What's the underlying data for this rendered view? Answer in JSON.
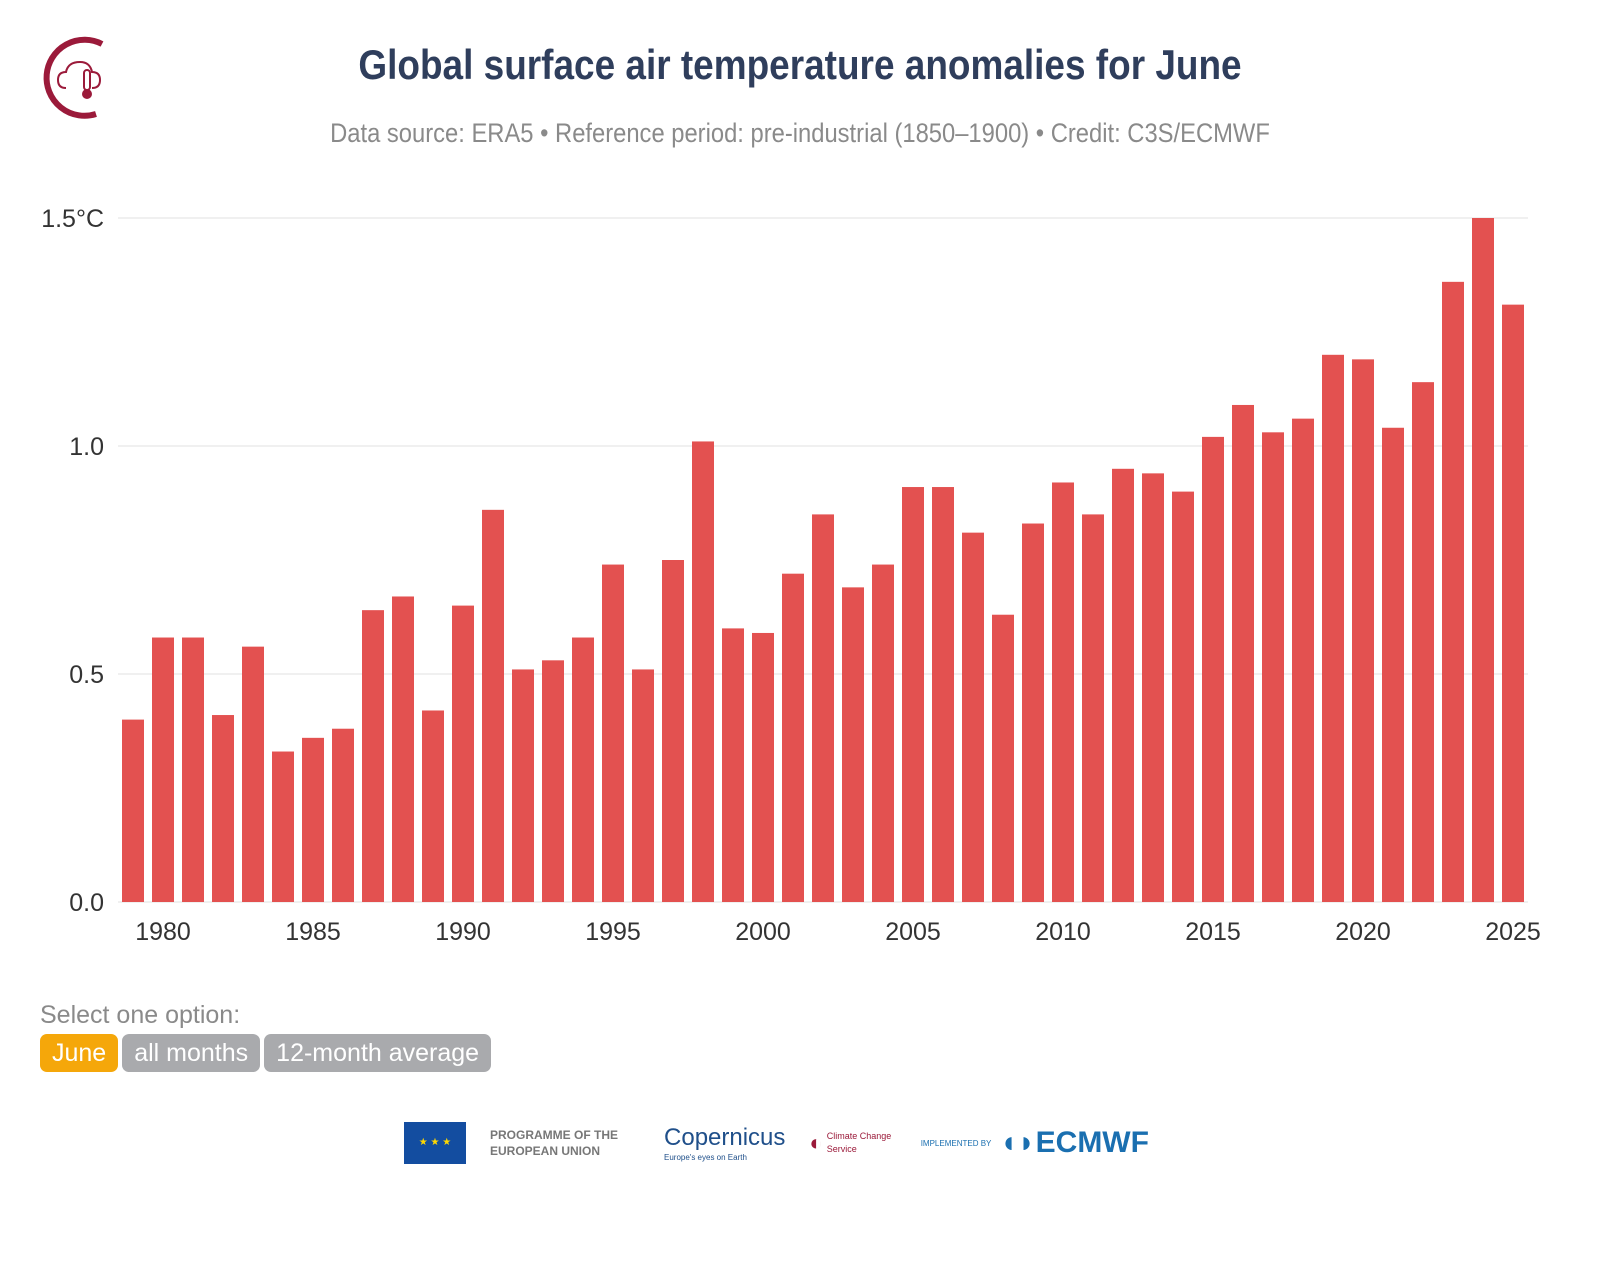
{
  "header": {
    "title": "Global surface air temperature anomalies for June",
    "subtitle": "Data source: ERA5 • Reference period: pre-industrial (1850–1900) • Credit: C3S/ECMWF"
  },
  "options": {
    "label": "Select one option:",
    "buttons": [
      "June",
      "all months",
      "12-month average"
    ],
    "selected": "June"
  },
  "footer": {
    "eu": "PROGRAMME OF THE EUROPEAN UNION",
    "copernicus": "opernicus",
    "copernicus_tag": "Europe's eyes on Earth",
    "c3s": "Climate Change Service",
    "implemented": "IMPLEMENTED BY",
    "ecmwf": "ECMWF"
  },
  "colors": {
    "bar": "#e35150",
    "grid": "#e0e0e0"
  },
  "chart_data": {
    "type": "bar",
    "title": "Global surface air temperature anomalies for June",
    "ylabel": "°C",
    "ylim": [
      0,
      1.5
    ],
    "yticks": [
      "0.0",
      "0.5",
      "1.0",
      "1.5°C"
    ],
    "yticks_values": [
      0,
      0.5,
      1.0,
      1.5
    ],
    "xticks": [
      1980,
      1985,
      1990,
      1995,
      2000,
      2005,
      2010,
      2015,
      2020,
      2025
    ],
    "categories": [
      1979,
      1980,
      1981,
      1982,
      1983,
      1984,
      1985,
      1986,
      1987,
      1988,
      1989,
      1990,
      1991,
      1992,
      1993,
      1994,
      1995,
      1996,
      1997,
      1998,
      1999,
      2000,
      2001,
      2002,
      2003,
      2004,
      2005,
      2006,
      2007,
      2008,
      2009,
      2010,
      2011,
      2012,
      2013,
      2014,
      2015,
      2016,
      2017,
      2018,
      2019,
      2020,
      2021,
      2022,
      2023,
      2024,
      2025
    ],
    "values": [
      0.4,
      0.58,
      0.58,
      0.41,
      0.56,
      0.33,
      0.36,
      0.38,
      0.64,
      0.67,
      0.42,
      0.65,
      0.86,
      0.51,
      0.53,
      0.58,
      0.74,
      0.51,
      0.75,
      1.01,
      0.6,
      0.59,
      0.72,
      0.85,
      0.69,
      0.74,
      0.91,
      0.91,
      0.81,
      0.63,
      0.83,
      0.92,
      0.85,
      0.95,
      0.94,
      0.9,
      1.02,
      1.09,
      1.03,
      1.06,
      1.2,
      1.19,
      1.04,
      1.14,
      1.36,
      1.5,
      1.31
    ]
  }
}
